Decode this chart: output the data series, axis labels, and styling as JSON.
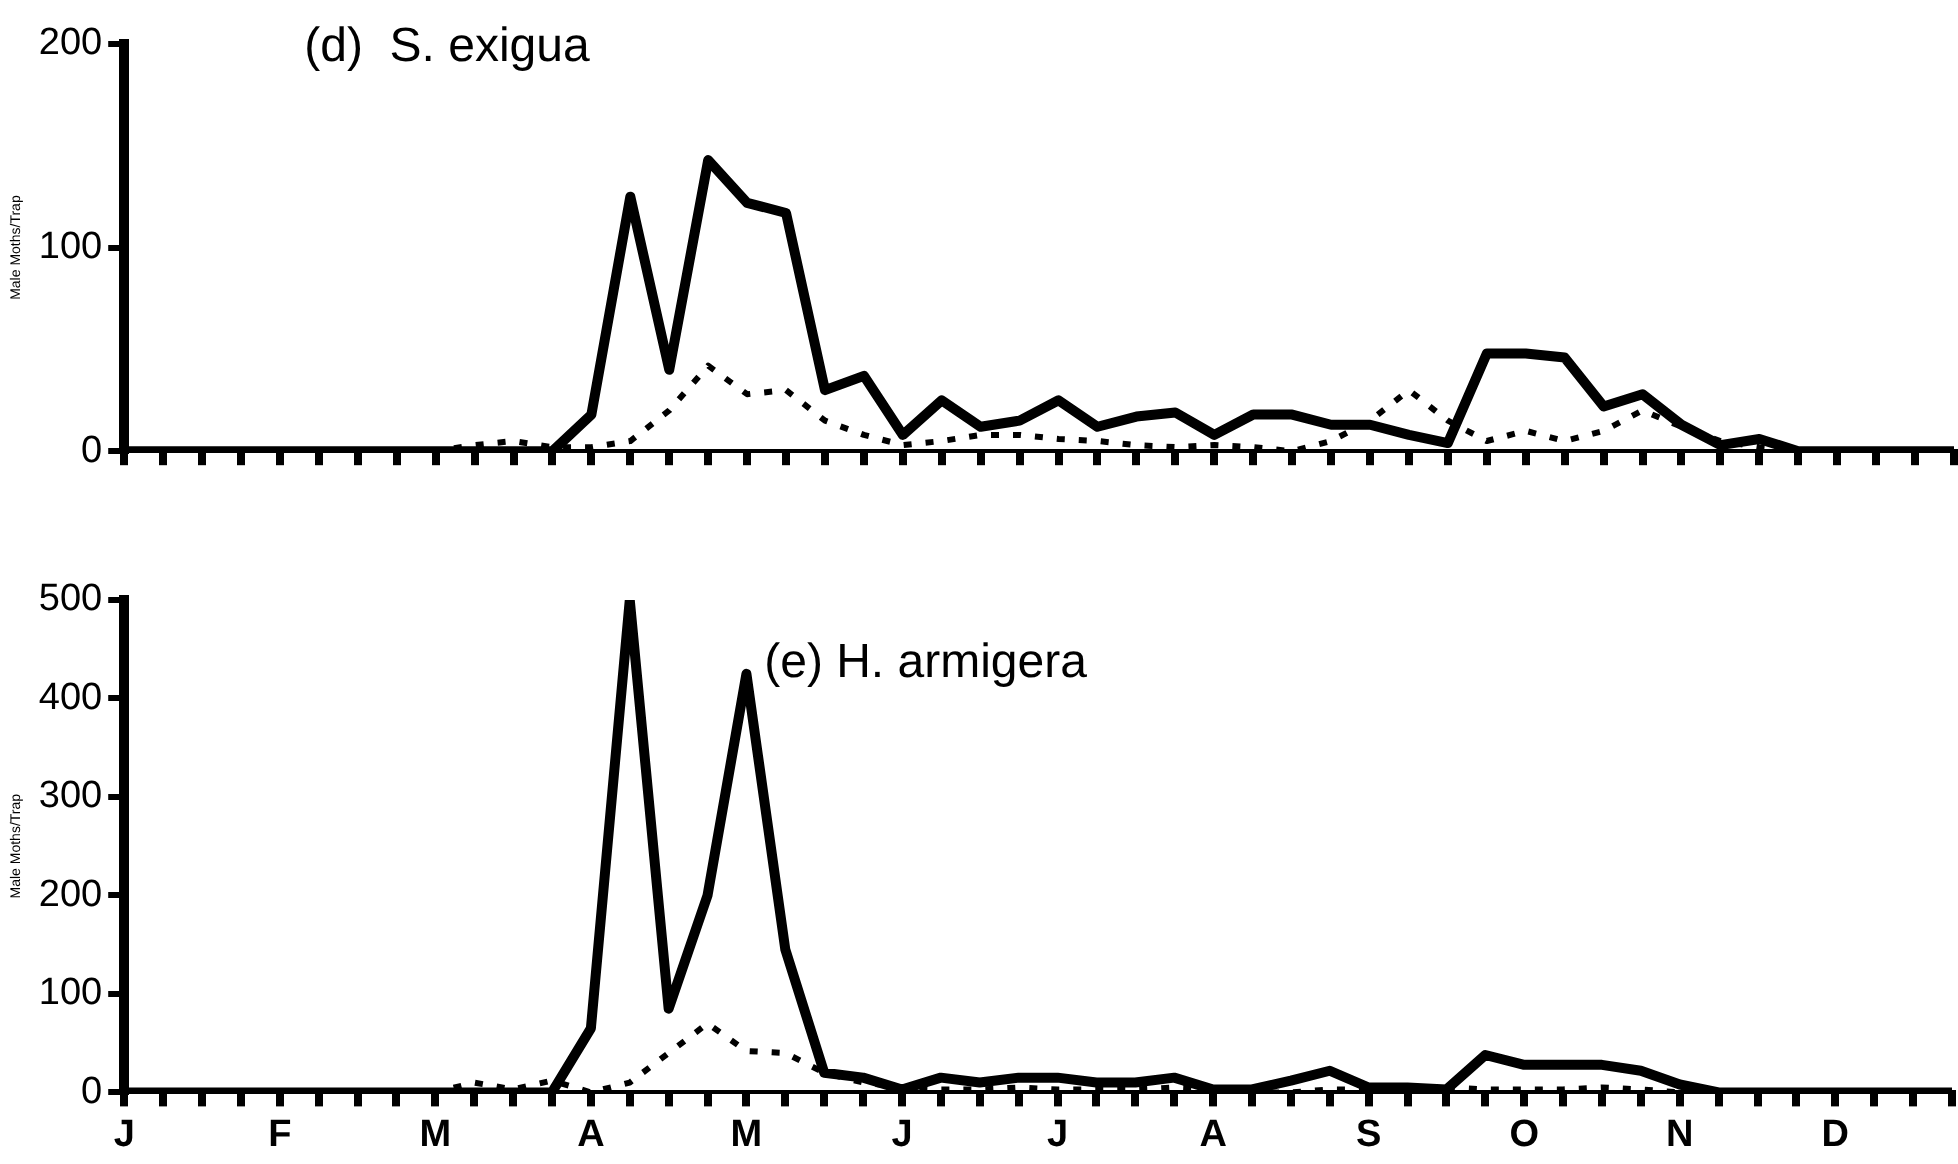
{
  "chart_data": [
    {
      "type": "line",
      "title": "(d)  S. exigua",
      "ylabel": "Male Moths/Trap",
      "categories": [
        null,
        null,
        null,
        null,
        null,
        null,
        null,
        null,
        null,
        null,
        null,
        null,
        null,
        null,
        null,
        null,
        null,
        null,
        null,
        null,
        null,
        null,
        null,
        null,
        null,
        null,
        null,
        null,
        null,
        null,
        null,
        null,
        null,
        null,
        null,
        null,
        null,
        null,
        null,
        null,
        null,
        null,
        null,
        null,
        null,
        null,
        null,
        null
      ],
      "series": [
        {
          "color": "#000000",
          "line_style": "solid",
          "values": [
            0,
            0,
            0,
            0,
            0,
            0,
            0,
            0,
            0,
            0,
            0,
            0,
            18,
            125,
            40,
            143,
            122,
            117,
            30,
            37,
            8,
            25,
            12,
            15,
            25,
            12,
            17,
            19,
            8,
            18,
            18,
            13,
            13,
            8,
            4,
            48,
            48,
            46,
            22,
            28,
            13,
            3,
            6,
            0,
            0,
            0,
            0,
            0
          ]
        },
        {
          "color": "#000000",
          "line_style": "dotted",
          "values": [
            0,
            0,
            0,
            0,
            0,
            0,
            0,
            0,
            0,
            3,
            5,
            2,
            2,
            5,
            20,
            42,
            28,
            30,
            15,
            8,
            3,
            5,
            8,
            8,
            6,
            5,
            3,
            2,
            3,
            2,
            0,
            5,
            15,
            30,
            15,
            5,
            10,
            5,
            10,
            20,
            12,
            5,
            2,
            0,
            0,
            0,
            0,
            0
          ]
        }
      ],
      "ylim": [
        0,
        200
      ],
      "yticks": [
        0,
        100,
        200
      ],
      "grid": false,
      "legend": false,
      "tick_labels": "y",
      "marker": "none"
    },
    {
      "type": "line",
      "title": "(e) H. armigera",
      "ylabel": "Male Moths/Trap",
      "categories": [
        "J",
        null,
        null,
        null,
        "F",
        null,
        null,
        null,
        "M",
        null,
        null,
        null,
        "A",
        null,
        null,
        null,
        "M",
        null,
        null,
        null,
        "J",
        null,
        null,
        null,
        "J",
        null,
        null,
        null,
        "A",
        null,
        null,
        null,
        "S",
        null,
        null,
        null,
        "O",
        null,
        null,
        null,
        "N",
        null,
        null,
        null,
        "D",
        null,
        null,
        null
      ],
      "series": [
        {
          "color": "#000000",
          "line_style": "solid",
          "values": [
            0,
            0,
            0,
            0,
            0,
            0,
            0,
            0,
            0,
            0,
            0,
            0,
            65,
            500,
            85,
            200,
            425,
            145,
            20,
            15,
            3,
            15,
            10,
            15,
            15,
            10,
            10,
            15,
            3,
            3,
            12,
            22,
            5,
            5,
            3,
            38,
            28,
            28,
            28,
            22,
            8,
            0,
            0,
            0,
            0,
            0,
            0,
            0
          ]
        },
        {
          "color": "#000000",
          "line_style": "dotted",
          "values": [
            0,
            0,
            0,
            0,
            0,
            0,
            0,
            0,
            0,
            10,
            3,
            12,
            0,
            10,
            40,
            70,
            42,
            40,
            20,
            10,
            5,
            3,
            3,
            5,
            3,
            3,
            3,
            5,
            3,
            0,
            0,
            3,
            3,
            3,
            5,
            3,
            3,
            3,
            5,
            3,
            0,
            0,
            0,
            0,
            0,
            0,
            0,
            0
          ]
        }
      ],
      "ylim": [
        0,
        500
      ],
      "yticks": [
        0,
        100,
        200,
        300,
        400,
        500
      ],
      "grid": false,
      "legend": false,
      "marker": "none"
    }
  ]
}
